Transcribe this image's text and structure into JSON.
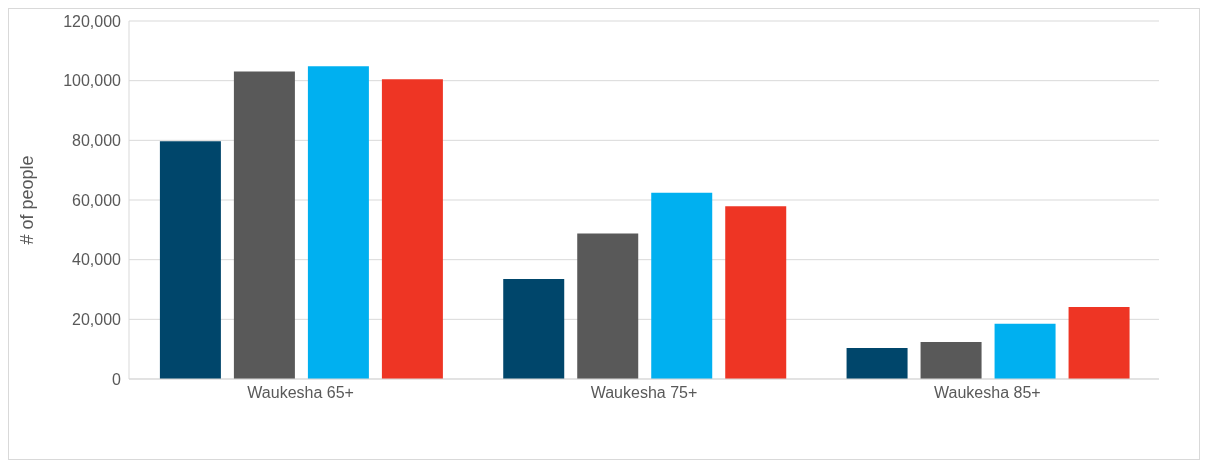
{
  "chart_data": {
    "type": "bar",
    "ylabel": "# of people",
    "categories": [
      "Waukesha 65+",
      "Waukesha 75+",
      "Waukesha 85+"
    ],
    "series": [
      {
        "color": "#00466b",
        "values": [
          79700,
          33500,
          10400
        ]
      },
      {
        "color": "#595959",
        "values": [
          103100,
          48800,
          12400
        ]
      },
      {
        "color": "#00b0f0",
        "values": [
          104800,
          62400,
          18500
        ]
      },
      {
        "color": "#ee3524",
        "values": [
          100500,
          57900,
          24100
        ]
      }
    ],
    "ylim": [
      0,
      120000
    ],
    "yticks": [
      0,
      {
        "value": 20000,
        "label": "20,000"
      },
      {
        "value": 40000,
        "label": "40,000"
      },
      {
        "value": 60000,
        "label": "60,000"
      },
      {
        "value": 80000,
        "label": "80,000"
      },
      {
        "value": 100000,
        "label": "100,000"
      },
      {
        "value": 120000,
        "label": "120,000"
      }
    ],
    "grid": "y",
    "legend": false
  }
}
